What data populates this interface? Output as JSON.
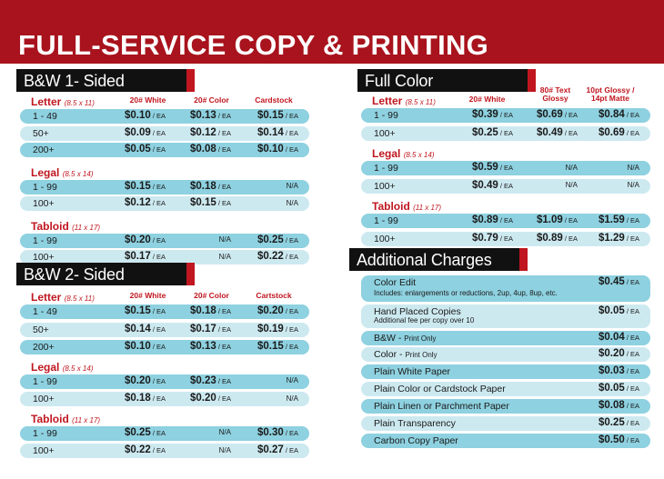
{
  "title": "FULL-SERVICE COPY & PRINTING",
  "unit": " / EA",
  "bw1": {
    "header": "B&W 1- Sided",
    "columns": [
      "20# White",
      "20# Color",
      "Cardstock"
    ],
    "groups": [
      {
        "name": "Letter",
        "size": "(8.5 x 11)",
        "rows": [
          {
            "qty": "1 - 49",
            "prices": [
              "$0.10",
              "$0.13",
              "$0.15"
            ]
          },
          {
            "qty": "50+",
            "prices": [
              "$0.09",
              "$0.12",
              "$0.14"
            ]
          },
          {
            "qty": "200+",
            "prices": [
              "$0.05",
              "$0.08",
              "$0.10"
            ]
          }
        ]
      },
      {
        "name": "Legal",
        "size": "(8.5 x 14)",
        "rows": [
          {
            "qty": "1 - 99",
            "prices": [
              "$0.15",
              "$0.18",
              "N/A"
            ]
          },
          {
            "qty": "100+",
            "prices": [
              "$0.12",
              "$0.15",
              "N/A"
            ]
          }
        ]
      },
      {
        "name": "Tabloid",
        "size": "(11 x 17)",
        "rows": [
          {
            "qty": "1 - 99",
            "prices": [
              "$0.20",
              "N/A",
              "$0.25"
            ]
          },
          {
            "qty": "100+",
            "prices": [
              "$0.17",
              "N/A",
              "$0.22"
            ]
          }
        ]
      }
    ]
  },
  "bw2": {
    "header": "B&W 2- Sided",
    "columns": [
      "20# White",
      "20# Color",
      "Cartstock"
    ],
    "groups": [
      {
        "name": "Letter",
        "size": "(8.5 x 11)",
        "rows": [
          {
            "qty": "1 - 49",
            "prices": [
              "$0.15",
              "$0.18",
              "$0.20"
            ]
          },
          {
            "qty": "50+",
            "prices": [
              "$0.14",
              "$0.17",
              "$0.19"
            ]
          },
          {
            "qty": "200+",
            "prices": [
              "$0.10",
              "$0.13",
              "$0.15"
            ]
          }
        ]
      },
      {
        "name": "Legal",
        "size": "(8.5 x 14)",
        "rows": [
          {
            "qty": "1 - 99",
            "prices": [
              "$0.20",
              "$0.23",
              "N/A"
            ]
          },
          {
            "qty": "100+",
            "prices": [
              "$0.18",
              "$0.20",
              "N/A"
            ]
          }
        ]
      },
      {
        "name": "Tabloid",
        "size": "(11 x 17)",
        "rows": [
          {
            "qty": "1 - 99",
            "prices": [
              "$0.25",
              "N/A",
              "$0.30"
            ]
          },
          {
            "qty": "100+",
            "prices": [
              "$0.22",
              "N/A",
              "$0.27"
            ]
          }
        ]
      }
    ]
  },
  "color": {
    "header": "Full Color",
    "columns": [
      "20# White",
      "80# Text Glossy",
      "10pt Glossy / 14pt Matte"
    ],
    "groups": [
      {
        "name": "Letter",
        "size": "(8.5 x 11)",
        "rows": [
          {
            "qty": "1 - 99",
            "prices": [
              "$0.39",
              "$0.69",
              "$0.84"
            ]
          },
          {
            "qty": "100+",
            "prices": [
              "$0.25",
              "$0.49",
              "$0.69"
            ]
          }
        ]
      },
      {
        "name": "Legal",
        "size": "(8.5 x 14)",
        "rows": [
          {
            "qty": "1 - 99",
            "prices": [
              "$0.59",
              "N/A",
              "N/A"
            ]
          },
          {
            "qty": "100+",
            "prices": [
              "$0.49",
              "N/A",
              "N/A"
            ]
          }
        ]
      },
      {
        "name": "Tabloid",
        "size": "(11 x 17)",
        "rows": [
          {
            "qty": "1 - 99",
            "prices": [
              "$0.89",
              "$1.09",
              "$1.59"
            ]
          },
          {
            "qty": "100+",
            "prices": [
              "$0.79",
              "$0.89",
              "$1.29"
            ]
          }
        ]
      }
    ]
  },
  "additional": {
    "header": "Additional Charges",
    "items": [
      {
        "label": "Color Edit",
        "note": "Includes: enlargements or reductions, 2up, 4up, 8up, etc.",
        "price": "$0.45"
      },
      {
        "label": "Hand Placed Copies",
        "note": "Additional fee per copy over 10",
        "price": "$0.05"
      },
      {
        "label": "B&W -",
        "label_small": "Print Only",
        "price": "$0.04"
      },
      {
        "label": "Color -",
        "label_small": "Print Only",
        "price": "$0.20"
      },
      {
        "label": "Plain White Paper",
        "price": "$0.03"
      },
      {
        "label": "Plain Color or Cardstock Paper",
        "price": "$0.05"
      },
      {
        "label": "Plain Linen or Parchment Paper",
        "price": "$0.08"
      },
      {
        "label": "Plain Transparency",
        "price": "$0.25"
      },
      {
        "label": "Carbon Copy Paper",
        "price": "$0.50"
      }
    ]
  },
  "colors": {
    "banner": "#a8131d",
    "accent_red": "#c0161f",
    "row_dark": "#8ed1e0",
    "row_light": "#cde9f0"
  }
}
